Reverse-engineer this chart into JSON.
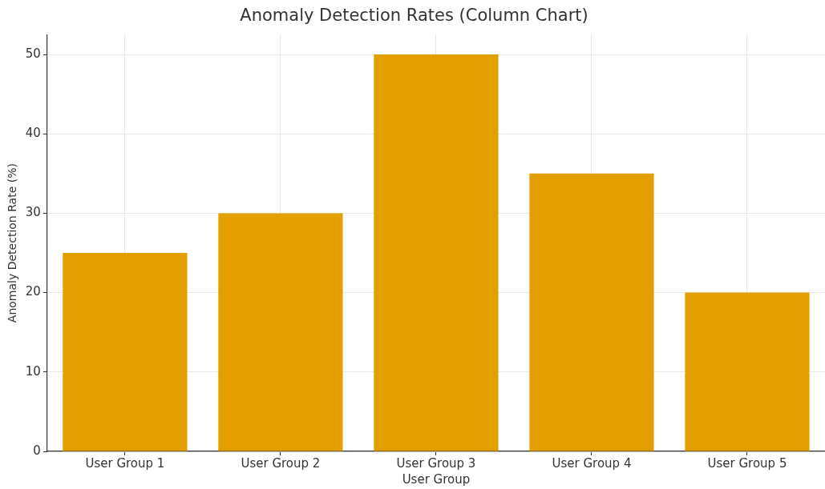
{
  "chart_data": {
    "type": "bar",
    "title": "Anomaly Detection Rates (Column Chart)",
    "xlabel": "User Group",
    "ylabel": "Anomaly Detection Rate (%)",
    "categories": [
      "User Group 1",
      "User Group 2",
      "User Group 3",
      "User Group 4",
      "User Group 5"
    ],
    "values": [
      25,
      30,
      50,
      35,
      20
    ],
    "color": "#e39f00",
    "ylim": [
      0,
      52.5
    ],
    "yticks": [
      0,
      10,
      20,
      30,
      40,
      50
    ],
    "grid": true,
    "legend": false
  }
}
